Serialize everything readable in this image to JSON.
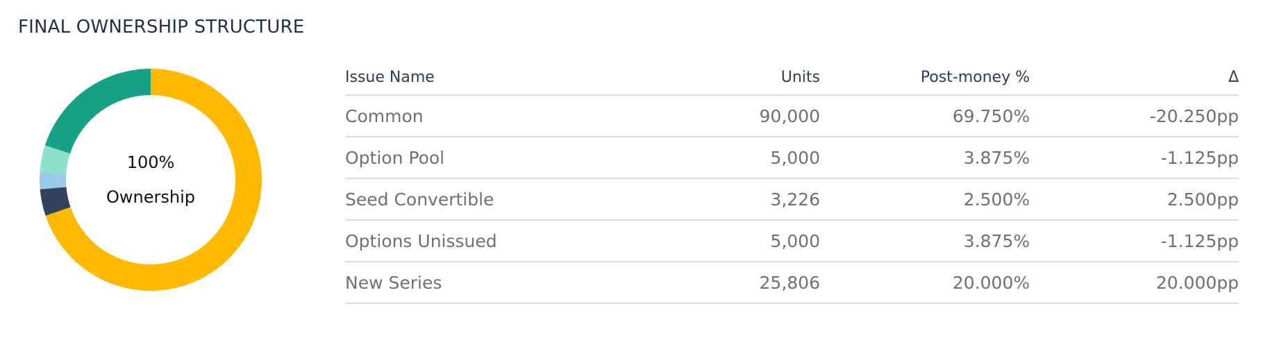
{
  "section": {
    "title": "FINAL OWNERSHIP STRUCTURE"
  },
  "donut": {
    "center_value": "100%",
    "center_label": "Ownership"
  },
  "table": {
    "headers": {
      "name": "Issue Name",
      "units": "Units",
      "post_money": "Post-money %",
      "delta": "Δ"
    },
    "rows": [
      {
        "name": "Common",
        "units": "90,000",
        "post_money": "69.750%",
        "delta": "-20.250pp"
      },
      {
        "name": "Option Pool",
        "units": "5,000",
        "post_money": "3.875%",
        "delta": "-1.125pp"
      },
      {
        "name": "Seed Convertible",
        "units": "3,226",
        "post_money": "2.500%",
        "delta": "2.500pp"
      },
      {
        "name": "Options Unissued",
        "units": "5,000",
        "post_money": "3.875%",
        "delta": "-1.125pp"
      },
      {
        "name": "New Series",
        "units": "25,806",
        "post_money": "20.000%",
        "delta": "20.000pp"
      }
    ]
  },
  "chart_data": {
    "type": "pie",
    "variant": "donut",
    "categories": [
      "Common",
      "Option Pool",
      "Seed Convertible",
      "Options Unissued",
      "New Series"
    ],
    "values": [
      69.75,
      3.875,
      2.5,
      3.875,
      20.0
    ],
    "colors": [
      "#ffba00",
      "#31435d",
      "#9acbea",
      "#8ee0cb",
      "#17a287"
    ],
    "start_angle": "12 o'clock, clockwise"
  }
}
